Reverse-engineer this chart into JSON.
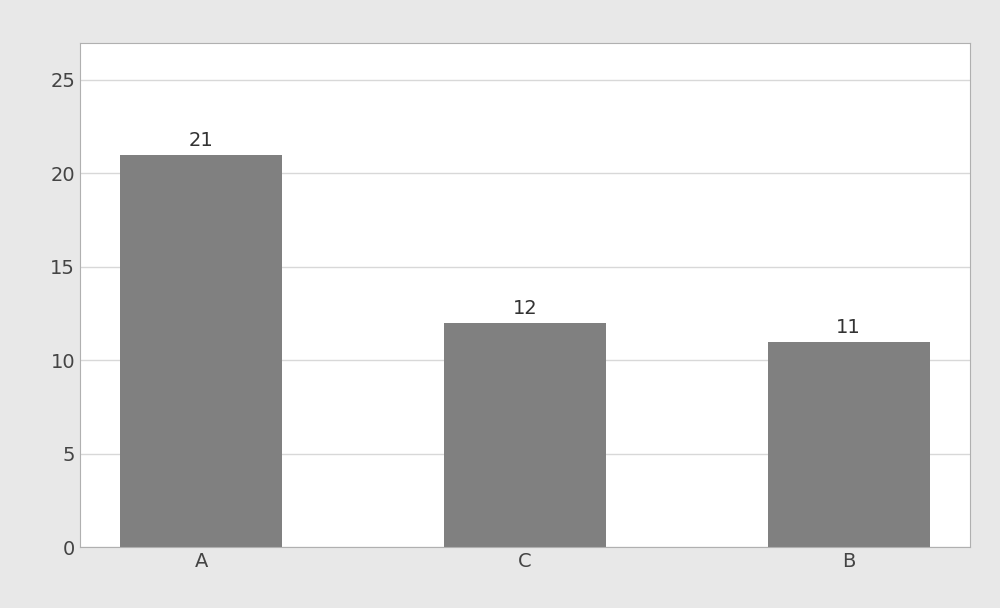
{
  "categories": [
    "A",
    "C",
    "B"
  ],
  "values": [
    21,
    12,
    11
  ],
  "bar_color": "#808080",
  "ylim": [
    0,
    27
  ],
  "yticks": [
    0,
    5,
    10,
    15,
    20,
    25
  ],
  "bar_width": 0.5,
  "figure_background_color": "#e8e8e8",
  "plot_background_color": "#ffffff",
  "tick_fontsize": 14,
  "value_label_fontsize": 14,
  "grid_color": "#d8d8d8",
  "border_color": "#b0b0b0"
}
